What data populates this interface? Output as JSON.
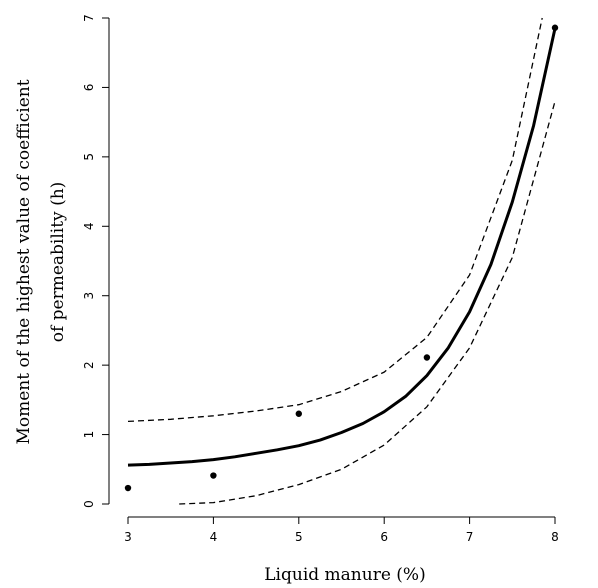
{
  "chart_data": {
    "type": "scatter",
    "xlabel": "Liquid manure (%)",
    "ylabel_lines": [
      "Moment of the highest value of coefficient",
      "of permeability (h)"
    ],
    "xlim": [
      3,
      8
    ],
    "ylim": [
      0,
      7
    ],
    "x_ticks": [
      3,
      4,
      5,
      6,
      7,
      8
    ],
    "y_ticks": [
      0,
      1,
      2,
      3,
      4,
      5,
      6,
      7
    ],
    "grid": false,
    "points": [
      {
        "x": 3.0,
        "y": 0.23
      },
      {
        "x": 4.0,
        "y": 0.41
      },
      {
        "x": 5.0,
        "y": 1.3
      },
      {
        "x": 6.5,
        "y": 2.11
      },
      {
        "x": 8.0,
        "y": 6.86
      }
    ],
    "fitted_curve": {
      "style": "solid",
      "x": [
        3.0,
        3.25,
        3.5,
        3.75,
        4.0,
        4.25,
        4.5,
        4.75,
        5.0,
        5.25,
        5.5,
        5.75,
        6.0,
        6.25,
        6.5,
        6.75,
        7.0,
        7.25,
        7.5,
        7.75,
        8.0
      ],
      "y": [
        0.56,
        0.57,
        0.59,
        0.61,
        0.64,
        0.68,
        0.73,
        0.78,
        0.84,
        0.92,
        1.03,
        1.16,
        1.33,
        1.55,
        1.85,
        2.25,
        2.77,
        3.45,
        4.35,
        5.45,
        6.85
      ]
    },
    "confidence_upper": {
      "style": "dashed",
      "x": [
        3.0,
        3.5,
        4.0,
        4.5,
        5.0,
        5.5,
        6.0,
        6.5,
        7.0,
        7.5,
        7.85
      ],
      "y": [
        1.19,
        1.22,
        1.27,
        1.34,
        1.43,
        1.62,
        1.9,
        2.4,
        3.3,
        4.95,
        7.0
      ]
    },
    "confidence_lower": {
      "style": "dashed",
      "x": [
        3.6,
        4.0,
        4.5,
        5.0,
        5.5,
        6.0,
        6.5,
        7.0,
        7.5,
        8.0
      ],
      "y": [
        0.0,
        0.02,
        0.12,
        0.28,
        0.5,
        0.85,
        1.4,
        2.25,
        3.55,
        5.8
      ]
    }
  }
}
